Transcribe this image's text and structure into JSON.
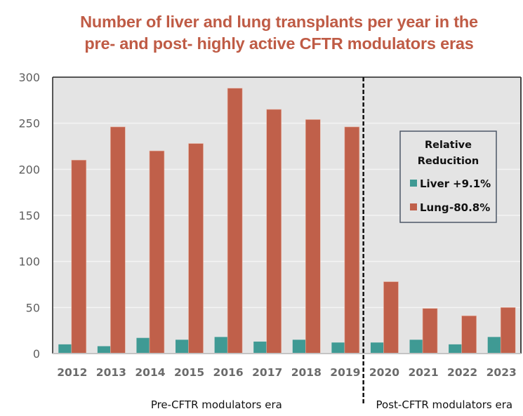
{
  "chart_data": {
    "type": "bar",
    "title": "Number of liver and lung transplants per year in the pre- and post- highly active CFTR modulators eras",
    "title_lines": [
      "Number of liver and lung transplants per year in the",
      "pre- and post- highly active CFTR modulators eras"
    ],
    "xlabel": "",
    "ylabel": "",
    "categories": [
      "2012",
      "2013",
      "2014",
      "2015",
      "2016",
      "2017",
      "2018",
      "2019",
      "2020",
      "2021",
      "2022",
      "2023"
    ],
    "series": [
      {
        "name": "Liver",
        "color": "#3f9a94",
        "values": [
          10,
          8,
          17,
          15,
          18,
          13,
          15,
          12,
          12,
          15,
          10,
          18
        ]
      },
      {
        "name": "Lung",
        "color": "#c0604a",
        "values": [
          210,
          246,
          220,
          228,
          288,
          265,
          254,
          246,
          78,
          49,
          41,
          50
        ]
      }
    ],
    "ylim": [
      0,
      300
    ],
    "yticks": [
      0,
      50,
      100,
      150,
      200,
      250,
      300
    ],
    "grid": true,
    "era_divider_after": "2019",
    "era_labels": {
      "pre": "Pre-CFTR modulators era",
      "post": "Post-CFTR modulators era"
    },
    "legend": {
      "placement": "right",
      "title_lines": [
        "Relative",
        "Reducition"
      ],
      "items": [
        {
          "label": "Liver",
          "value": "+9.1%",
          "color": "#3f9a94"
        },
        {
          "label": "Lung",
          "value": "-80.8%",
          "color": "#c0604a"
        }
      ]
    },
    "colors": {
      "title": "#bf5b45",
      "plot_background": "#e4e4e4"
    }
  }
}
